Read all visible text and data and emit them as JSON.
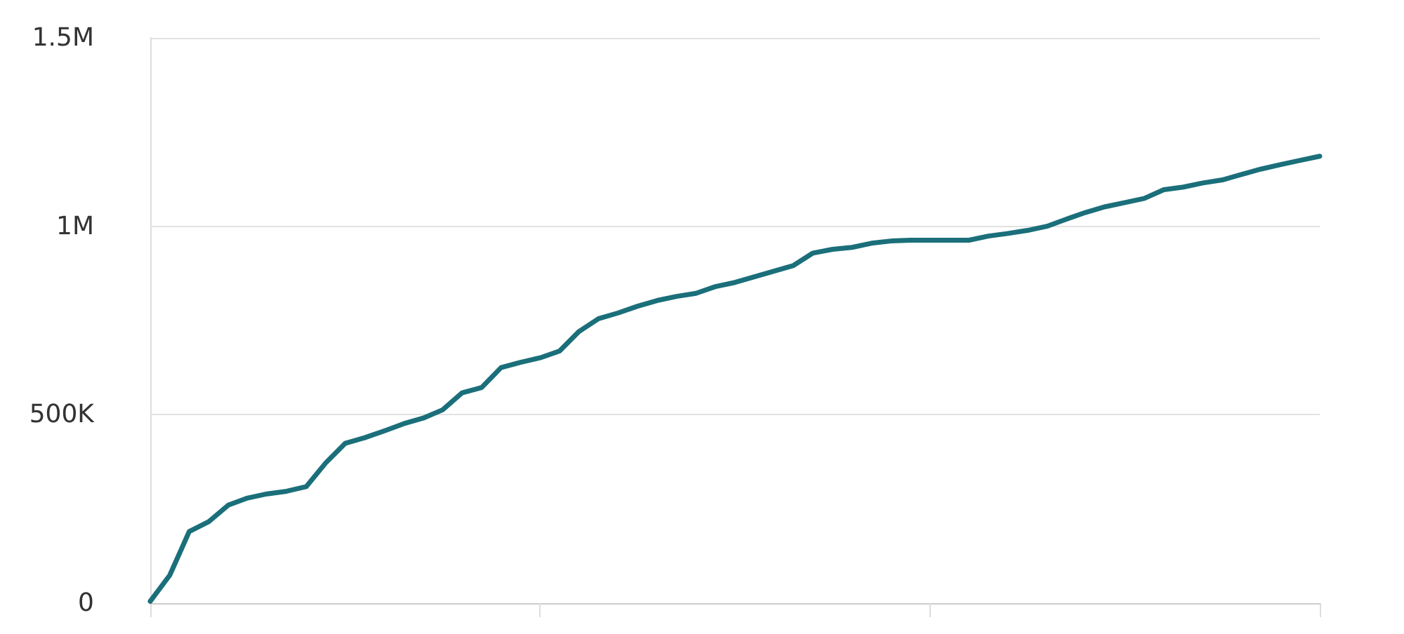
{
  "chart_data": {
    "type": "line",
    "categories": [
      null,
      null,
      null,
      null,
      null,
      null,
      null,
      null,
      null,
      null,
      null,
      null,
      null,
      null,
      null,
      null,
      null,
      null,
      null,
      null,
      null,
      null,
      null,
      null,
      null,
      null,
      null,
      null,
      null,
      null,
      null,
      null,
      null,
      null,
      null,
      null,
      null,
      null,
      null,
      null,
      null,
      null,
      null,
      null,
      null,
      null,
      null,
      null,
      null,
      null,
      null,
      null,
      null,
      null,
      null,
      null,
      null,
      null,
      null,
      null,
      null
    ],
    "series": [
      {
        "color": "#1a6f7a",
        "values": [
          5000,
          74000,
          190000,
          216000,
          260000,
          279000,
          290000,
          297000,
          309000,
          372000,
          424000,
          439000,
          457000,
          476000,
          491000,
          513000,
          558000,
          572000,
          625000,
          639000,
          651000,
          669000,
          721000,
          755000,
          770000,
          788000,
          803000,
          814000,
          822000,
          840000,
          851000,
          866000,
          881000,
          896000,
          929000,
          939000,
          944000,
          955000,
          961000,
          963000,
          963000,
          963000,
          963000,
          974000,
          981000,
          989000,
          1000000,
          1019000,
          1037000,
          1052000,
          1063000,
          1074000,
          1097000,
          1104000,
          1115000,
          1123000,
          1138000,
          1152000,
          1164000,
          1175000,
          1186000
        ]
      }
    ],
    "ylim": [
      0,
      1500000
    ],
    "yticks": [
      0,
      {
        "value": 500000,
        "label": "500K"
      },
      {
        "value": 1000000,
        "label": "1M"
      },
      {
        "value": 1500000,
        "label": "1.5M"
      }
    ],
    "grid": "y",
    "tick_labels": "y",
    "marker": "none",
    "line_style": "solid"
  }
}
